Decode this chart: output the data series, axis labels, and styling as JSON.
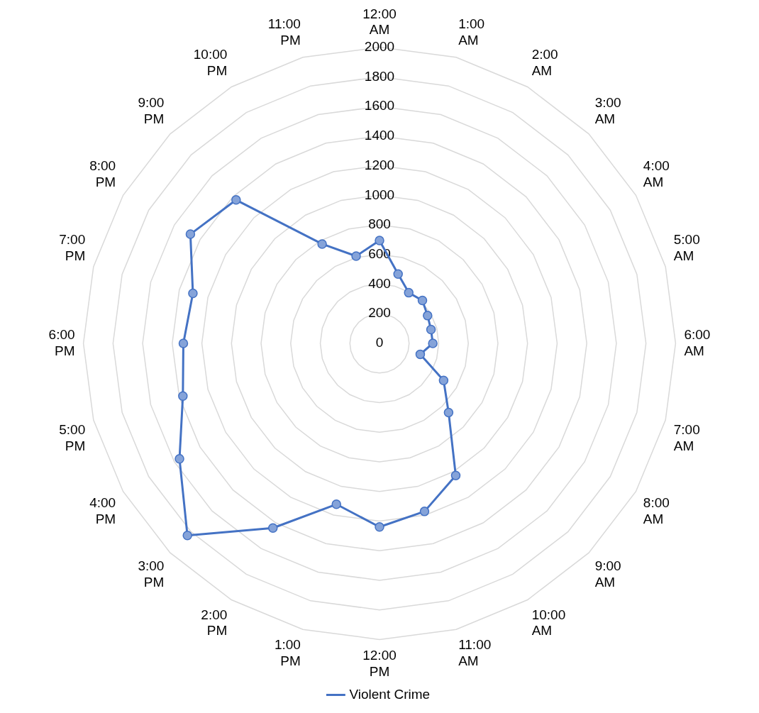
{
  "chart_data": {
    "type": "radar",
    "categories": [
      "12:00 AM",
      "1:00 AM",
      "2:00 AM",
      "3:00 AM",
      "4:00 AM",
      "5:00 AM",
      "6:00 AM",
      "7:00 AM",
      "8:00 AM",
      "9:00 AM",
      "10:00 AM",
      "11:00 AM",
      "12:00 PM",
      "1:00 PM",
      "2:00 PM",
      "3:00 PM",
      "4:00 PM",
      "5:00 PM",
      "6:00 PM",
      "7:00 PM",
      "8:00 PM",
      "9:00 PM",
      "10:00 PM",
      "11:00 PM"
    ],
    "series": [
      {
        "name": "Violent Crime",
        "color": "#4472c4",
        "values": [
          695,
          485,
          395,
          410,
          375,
          360,
          360,
          285,
          500,
          660,
          1030,
          1175,
          1240,
          1125,
          1440,
          1835,
          1560,
          1375,
          1325,
          1305,
          1475,
          1370,
          775,
          610
        ]
      }
    ],
    "ylim": [
      0,
      2000
    ],
    "yticks": [
      0,
      200,
      400,
      600,
      800,
      1000,
      1200,
      1400,
      1600,
      1800,
      2000
    ],
    "grid": true,
    "legend": "bottom",
    "marker": "circle",
    "line_style": "solid"
  }
}
